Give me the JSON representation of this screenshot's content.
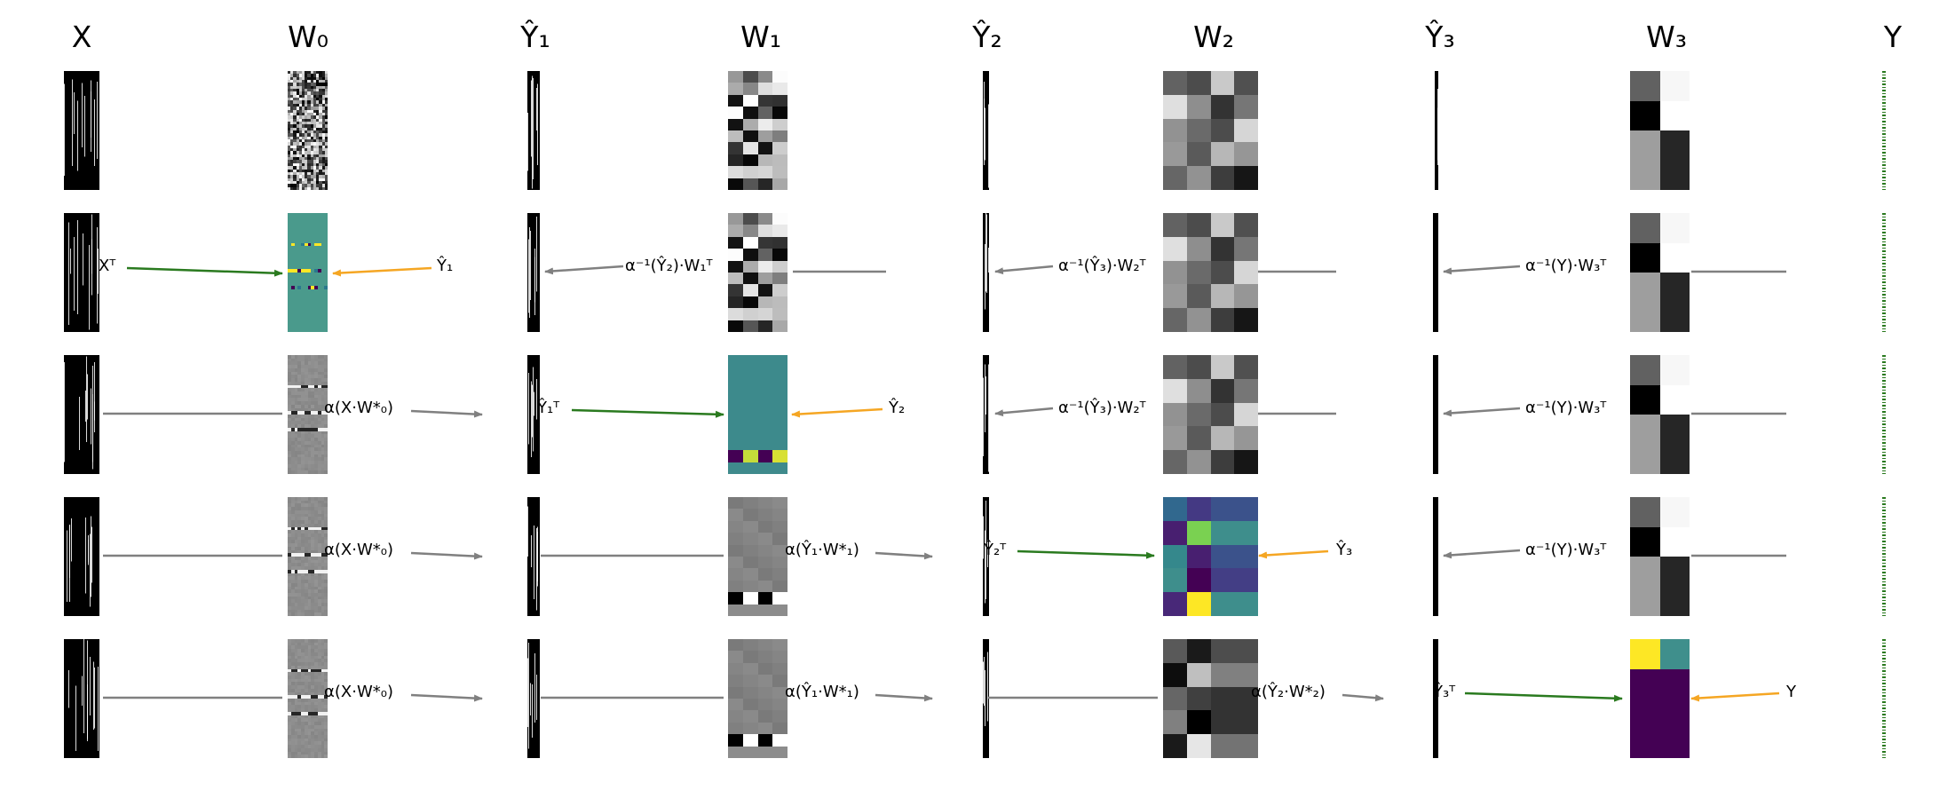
{
  "columns": [
    {
      "title": "X"
    },
    {
      "title": "W₀"
    },
    {
      "title": "Ŷ₁"
    },
    {
      "title": "W₁"
    },
    {
      "title": "Ŷ₂"
    },
    {
      "title": "W₂"
    },
    {
      "title": "Ŷ₃"
    },
    {
      "title": "W₃"
    },
    {
      "title": "Y"
    }
  ],
  "labels": {
    "row1": {
      "xT": "Xᵀ",
      "y1hat": "Ŷ₁",
      "inv_w1": "α⁻¹(Ŷ₂)·W₁ᵀ",
      "inv_w2": "α⁻¹(Ŷ₃)·W₂ᵀ",
      "inv_w3": "α⁻¹(Y)·W₃ᵀ"
    },
    "row2": {
      "fwd0": "α(X·W*₀)",
      "y1T": "Ŷ₁ᵀ",
      "y2hat": "Ŷ₂",
      "inv_w2": "α⁻¹(Ŷ₃)·W₂ᵀ",
      "inv_w3": "α⁻¹(Y)·W₃ᵀ"
    },
    "row3": {
      "fwd0": "α(X·W*₀)",
      "fwd1": "α(Ŷ₁·W*₁)",
      "y2T": "Ŷ₂ᵀ",
      "y3hat": "Ŷ₃",
      "inv_w3": "α⁻¹(Y)·W₃ᵀ"
    },
    "row4": {
      "fwd0": "α(X·W*₀)",
      "fwd1": "α(Ŷ₁·W*₁)",
      "fwd2": "α(Ŷ₂·W*₂)",
      "y3T": "Ŷ₃ᵀ",
      "y": "Y"
    }
  },
  "colors": {
    "arrow_gray": "#808080",
    "arrow_green": "#2a7a1f",
    "arrow_orange": "#f5a623",
    "viridis_dark": "#440154",
    "viridis_yellow": "#fde725",
    "viridis_teal": "#3f8f8c",
    "line_green": "#2a7a1f"
  }
}
